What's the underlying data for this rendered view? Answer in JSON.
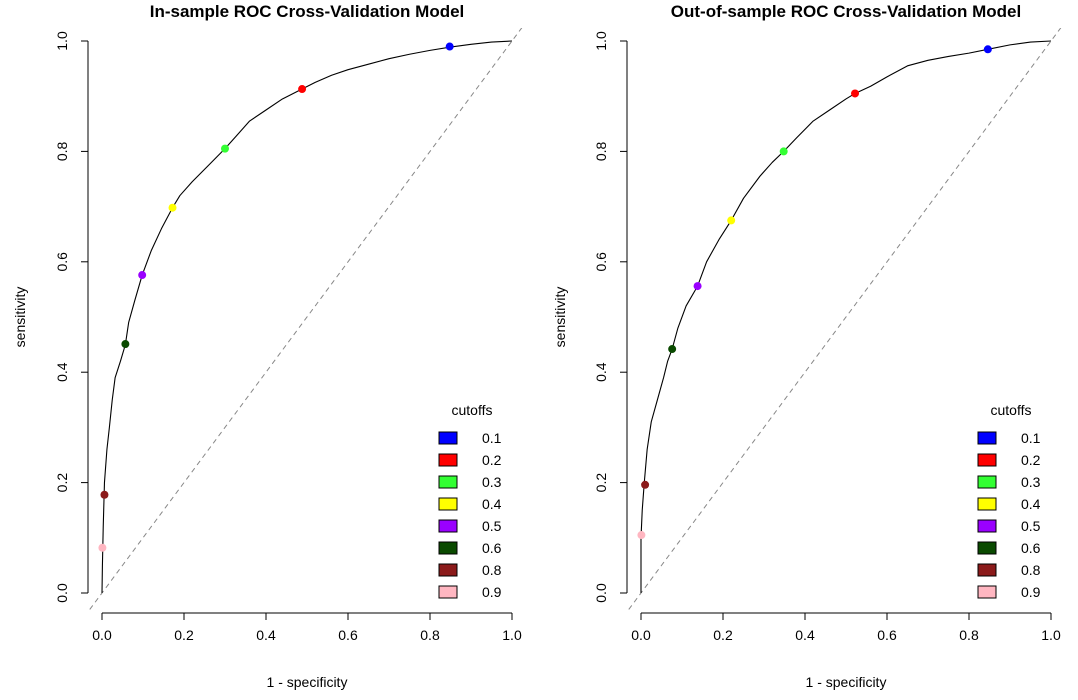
{
  "chart_data": [
    {
      "type": "line",
      "title": "In-sample ROC Cross-Validation Model",
      "xlabel": "1 - specificity",
      "ylabel": "sensitivity",
      "xlim": [
        0,
        1
      ],
      "ylim": [
        0,
        1
      ],
      "x_ticks": [
        "0.0",
        "0.2",
        "0.4",
        "0.6",
        "0.8",
        "1.0"
      ],
      "y_ticks": [
        "0.0",
        "0.2",
        "0.4",
        "0.6",
        "0.8",
        "1.0"
      ],
      "grid": false,
      "diagonal_reference": true,
      "curve": [
        [
          0,
          0
        ],
        [
          0.001,
          0.05
        ],
        [
          0.003,
          0.12
        ],
        [
          0.006,
          0.2
        ],
        [
          0.012,
          0.26
        ],
        [
          0.018,
          0.3
        ],
        [
          0.025,
          0.35
        ],
        [
          0.032,
          0.39
        ],
        [
          0.045,
          0.42
        ],
        [
          0.057,
          0.45
        ],
        [
          0.065,
          0.49
        ],
        [
          0.08,
          0.53
        ],
        [
          0.098,
          0.576
        ],
        [
          0.12,
          0.62
        ],
        [
          0.145,
          0.66
        ],
        [
          0.172,
          0.698
        ],
        [
          0.19,
          0.72
        ],
        [
          0.22,
          0.745
        ],
        [
          0.26,
          0.775
        ],
        [
          0.3,
          0.805
        ],
        [
          0.33,
          0.83
        ],
        [
          0.36,
          0.855
        ],
        [
          0.4,
          0.875
        ],
        [
          0.44,
          0.895
        ],
        [
          0.488,
          0.913
        ],
        [
          0.52,
          0.925
        ],
        [
          0.56,
          0.938
        ],
        [
          0.6,
          0.948
        ],
        [
          0.65,
          0.958
        ],
        [
          0.7,
          0.968
        ],
        [
          0.75,
          0.976
        ],
        [
          0.8,
          0.983
        ],
        [
          0.85,
          0.989
        ],
        [
          0.9,
          0.994
        ],
        [
          0.95,
          0.998
        ],
        [
          1,
          1
        ]
      ],
      "cutoff_points": [
        {
          "cutoff": "0.1",
          "x": 0.848,
          "y": 0.99,
          "color": "#0000ff"
        },
        {
          "cutoff": "0.2",
          "x": 0.488,
          "y": 0.913,
          "color": "#ff0000"
        },
        {
          "cutoff": "0.3",
          "x": 0.3,
          "y": 0.805,
          "color": "#33ff33"
        },
        {
          "cutoff": "0.4",
          "x": 0.172,
          "y": 0.698,
          "color": "#ffff00"
        },
        {
          "cutoff": "0.5",
          "x": 0.098,
          "y": 0.576,
          "color": "#9a00ff"
        },
        {
          "cutoff": "0.6",
          "x": 0.057,
          "y": 0.451,
          "color": "#0a4a00"
        },
        {
          "cutoff": "0.8",
          "x": 0.006,
          "y": 0.178,
          "color": "#8b1a1a"
        },
        {
          "cutoff": "0.9",
          "x": 0.001,
          "y": 0.082,
          "color": "#ffb6c1"
        }
      ],
      "legend": {
        "title": "cutoffs",
        "placement": "bottom-right",
        "entries": [
          {
            "label": "0.1",
            "color": "#0000ff"
          },
          {
            "label": "0.2",
            "color": "#ff0000"
          },
          {
            "label": "0.3",
            "color": "#33ff33"
          },
          {
            "label": "0.4",
            "color": "#ffff00"
          },
          {
            "label": "0.5",
            "color": "#9a00ff"
          },
          {
            "label": "0.6",
            "color": "#0a4a00"
          },
          {
            "label": "0.8",
            "color": "#8b1a1a"
          },
          {
            "label": "0.9",
            "color": "#ffb6c1"
          }
        ]
      }
    },
    {
      "type": "line",
      "title": "Out-of-sample ROC Cross-Validation Model",
      "xlabel": "1 - specificity",
      "ylabel": "sensitivity",
      "xlim": [
        0,
        1
      ],
      "ylim": [
        0,
        1
      ],
      "x_ticks": [
        "0.0",
        "0.2",
        "0.4",
        "0.6",
        "0.8",
        "1.0"
      ],
      "y_ticks": [
        "0.0",
        "0.2",
        "0.4",
        "0.6",
        "0.8",
        "1.0"
      ],
      "grid": false,
      "diagonal_reference": true,
      "curve": [
        [
          0,
          0
        ],
        [
          0,
          0.1
        ],
        [
          0.003,
          0.15
        ],
        [
          0.008,
          0.2
        ],
        [
          0.015,
          0.26
        ],
        [
          0.025,
          0.31
        ],
        [
          0.04,
          0.35
        ],
        [
          0.055,
          0.39
        ],
        [
          0.065,
          0.42
        ],
        [
          0.076,
          0.442
        ],
        [
          0.09,
          0.48
        ],
        [
          0.11,
          0.52
        ],
        [
          0.138,
          0.556
        ],
        [
          0.16,
          0.6
        ],
        [
          0.19,
          0.64
        ],
        [
          0.22,
          0.675
        ],
        [
          0.25,
          0.715
        ],
        [
          0.29,
          0.755
        ],
        [
          0.32,
          0.78
        ],
        [
          0.348,
          0.8
        ],
        [
          0.38,
          0.825
        ],
        [
          0.42,
          0.855
        ],
        [
          0.46,
          0.875
        ],
        [
          0.5,
          0.895
        ],
        [
          0.522,
          0.905
        ],
        [
          0.56,
          0.918
        ],
        [
          0.6,
          0.935
        ],
        [
          0.65,
          0.955
        ],
        [
          0.7,
          0.965
        ],
        [
          0.75,
          0.972
        ],
        [
          0.8,
          0.978
        ],
        [
          0.846,
          0.985
        ],
        [
          0.9,
          0.993
        ],
        [
          0.95,
          0.998
        ],
        [
          1,
          1
        ]
      ],
      "cutoff_points": [
        {
          "cutoff": "0.1",
          "x": 0.846,
          "y": 0.985,
          "color": "#0000ff"
        },
        {
          "cutoff": "0.2",
          "x": 0.522,
          "y": 0.905,
          "color": "#ff0000"
        },
        {
          "cutoff": "0.3",
          "x": 0.348,
          "y": 0.8,
          "color": "#33ff33"
        },
        {
          "cutoff": "0.4",
          "x": 0.22,
          "y": 0.675,
          "color": "#ffff00"
        },
        {
          "cutoff": "0.5",
          "x": 0.138,
          "y": 0.556,
          "color": "#9a00ff"
        },
        {
          "cutoff": "0.6",
          "x": 0.076,
          "y": 0.442,
          "color": "#0a4a00"
        },
        {
          "cutoff": "0.8",
          "x": 0.01,
          "y": 0.196,
          "color": "#8b1a1a"
        },
        {
          "cutoff": "0.9",
          "x": 0.001,
          "y": 0.105,
          "color": "#ffb6c1"
        }
      ],
      "legend": {
        "title": "cutoffs",
        "placement": "bottom-right",
        "entries": [
          {
            "label": "0.1",
            "color": "#0000ff"
          },
          {
            "label": "0.2",
            "color": "#ff0000"
          },
          {
            "label": "0.3",
            "color": "#33ff33"
          },
          {
            "label": "0.4",
            "color": "#ffff00"
          },
          {
            "label": "0.5",
            "color": "#9a00ff"
          },
          {
            "label": "0.6",
            "color": "#0a4a00"
          },
          {
            "label": "0.8",
            "color": "#8b1a1a"
          },
          {
            "label": "0.9",
            "color": "#ffb6c1"
          }
        ]
      }
    }
  ]
}
